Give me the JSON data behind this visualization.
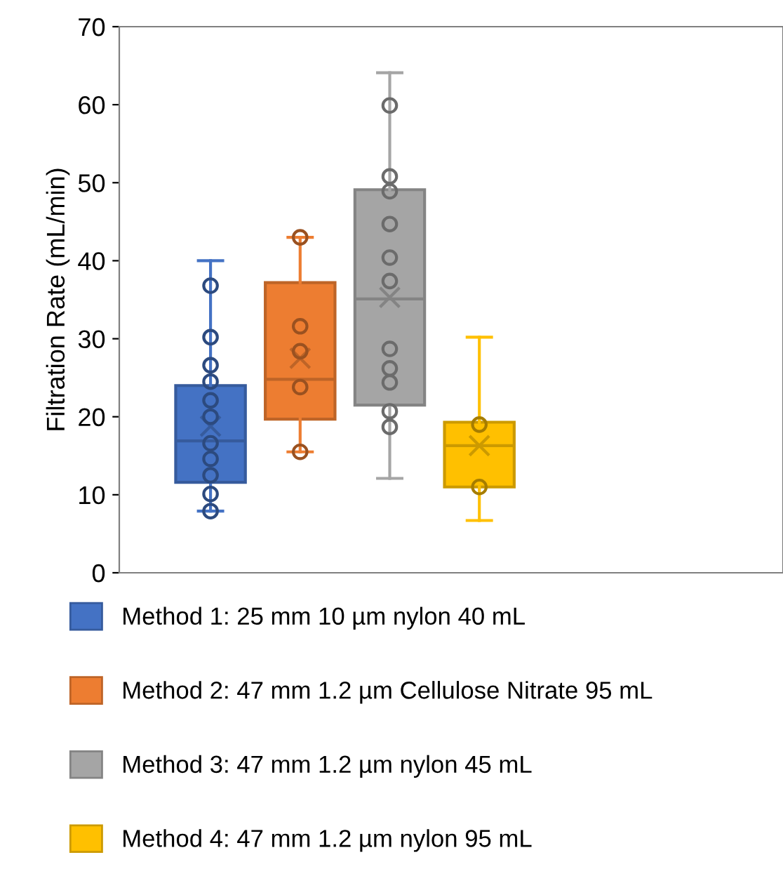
{
  "chart_data": {
    "type": "box",
    "ylabel": "Filtration Rate (mL/min)",
    "categories": [
      null
    ],
    "ylim": [
      0,
      70
    ],
    "yticks": [
      0,
      10,
      20,
      30,
      40,
      50,
      60,
      70
    ],
    "grid": false,
    "legend": "bottom",
    "marker": "circle",
    "tick_labels": "y",
    "series": [
      {
        "name": "Method 1: 25 mm 10 µm nylon 40 mL",
        "color": "#4472c4",
        "boxes": [
          {
            "low": 7.9,
            "q1": 11.6,
            "median": 16.9,
            "q3": 24.0,
            "high": 40.0,
            "mean": 18.8,
            "outliers": [
              36.8,
              30.2,
              26.6,
              24.5,
              22.1,
              20.0,
              16.6,
              14.6,
              12.5,
              10.1,
              7.9
            ]
          }
        ]
      },
      {
        "name": "Method 2: 47 mm 1.2 µm Cellulose Nitrate 95 mL",
        "color": "#ed7d31",
        "boxes": [
          {
            "low": 15.5,
            "q1": 19.7,
            "median": 24.8,
            "q3": 37.2,
            "high": 43.0,
            "mean": 27.5,
            "outliers": [
              43.0,
              31.6,
              28.4,
              23.8,
              15.5
            ]
          }
        ]
      },
      {
        "name": "Method 3: 47 mm 1.2 µm nylon 45 mL",
        "color": "#a5a5a5",
        "boxes": [
          {
            "low": 12.1,
            "q1": 21.5,
            "median": 35.1,
            "q3": 49.1,
            "high": 64.1,
            "mean": 35.3,
            "outliers": [
              59.9,
              50.8,
              48.9,
              44.7,
              40.4,
              37.4,
              28.7,
              26.2,
              24.4,
              20.7,
              18.7
            ]
          }
        ]
      },
      {
        "name": "Method 4: 47 mm 1.2 µm nylon 95 mL",
        "color": "#ffc000",
        "boxes": [
          {
            "low": 6.7,
            "q1": 11.0,
            "median": 16.3,
            "q3": 19.3,
            "high": 30.2,
            "mean": 16.3,
            "outliers": [
              19.0,
              11.0
            ]
          }
        ]
      }
    ]
  }
}
